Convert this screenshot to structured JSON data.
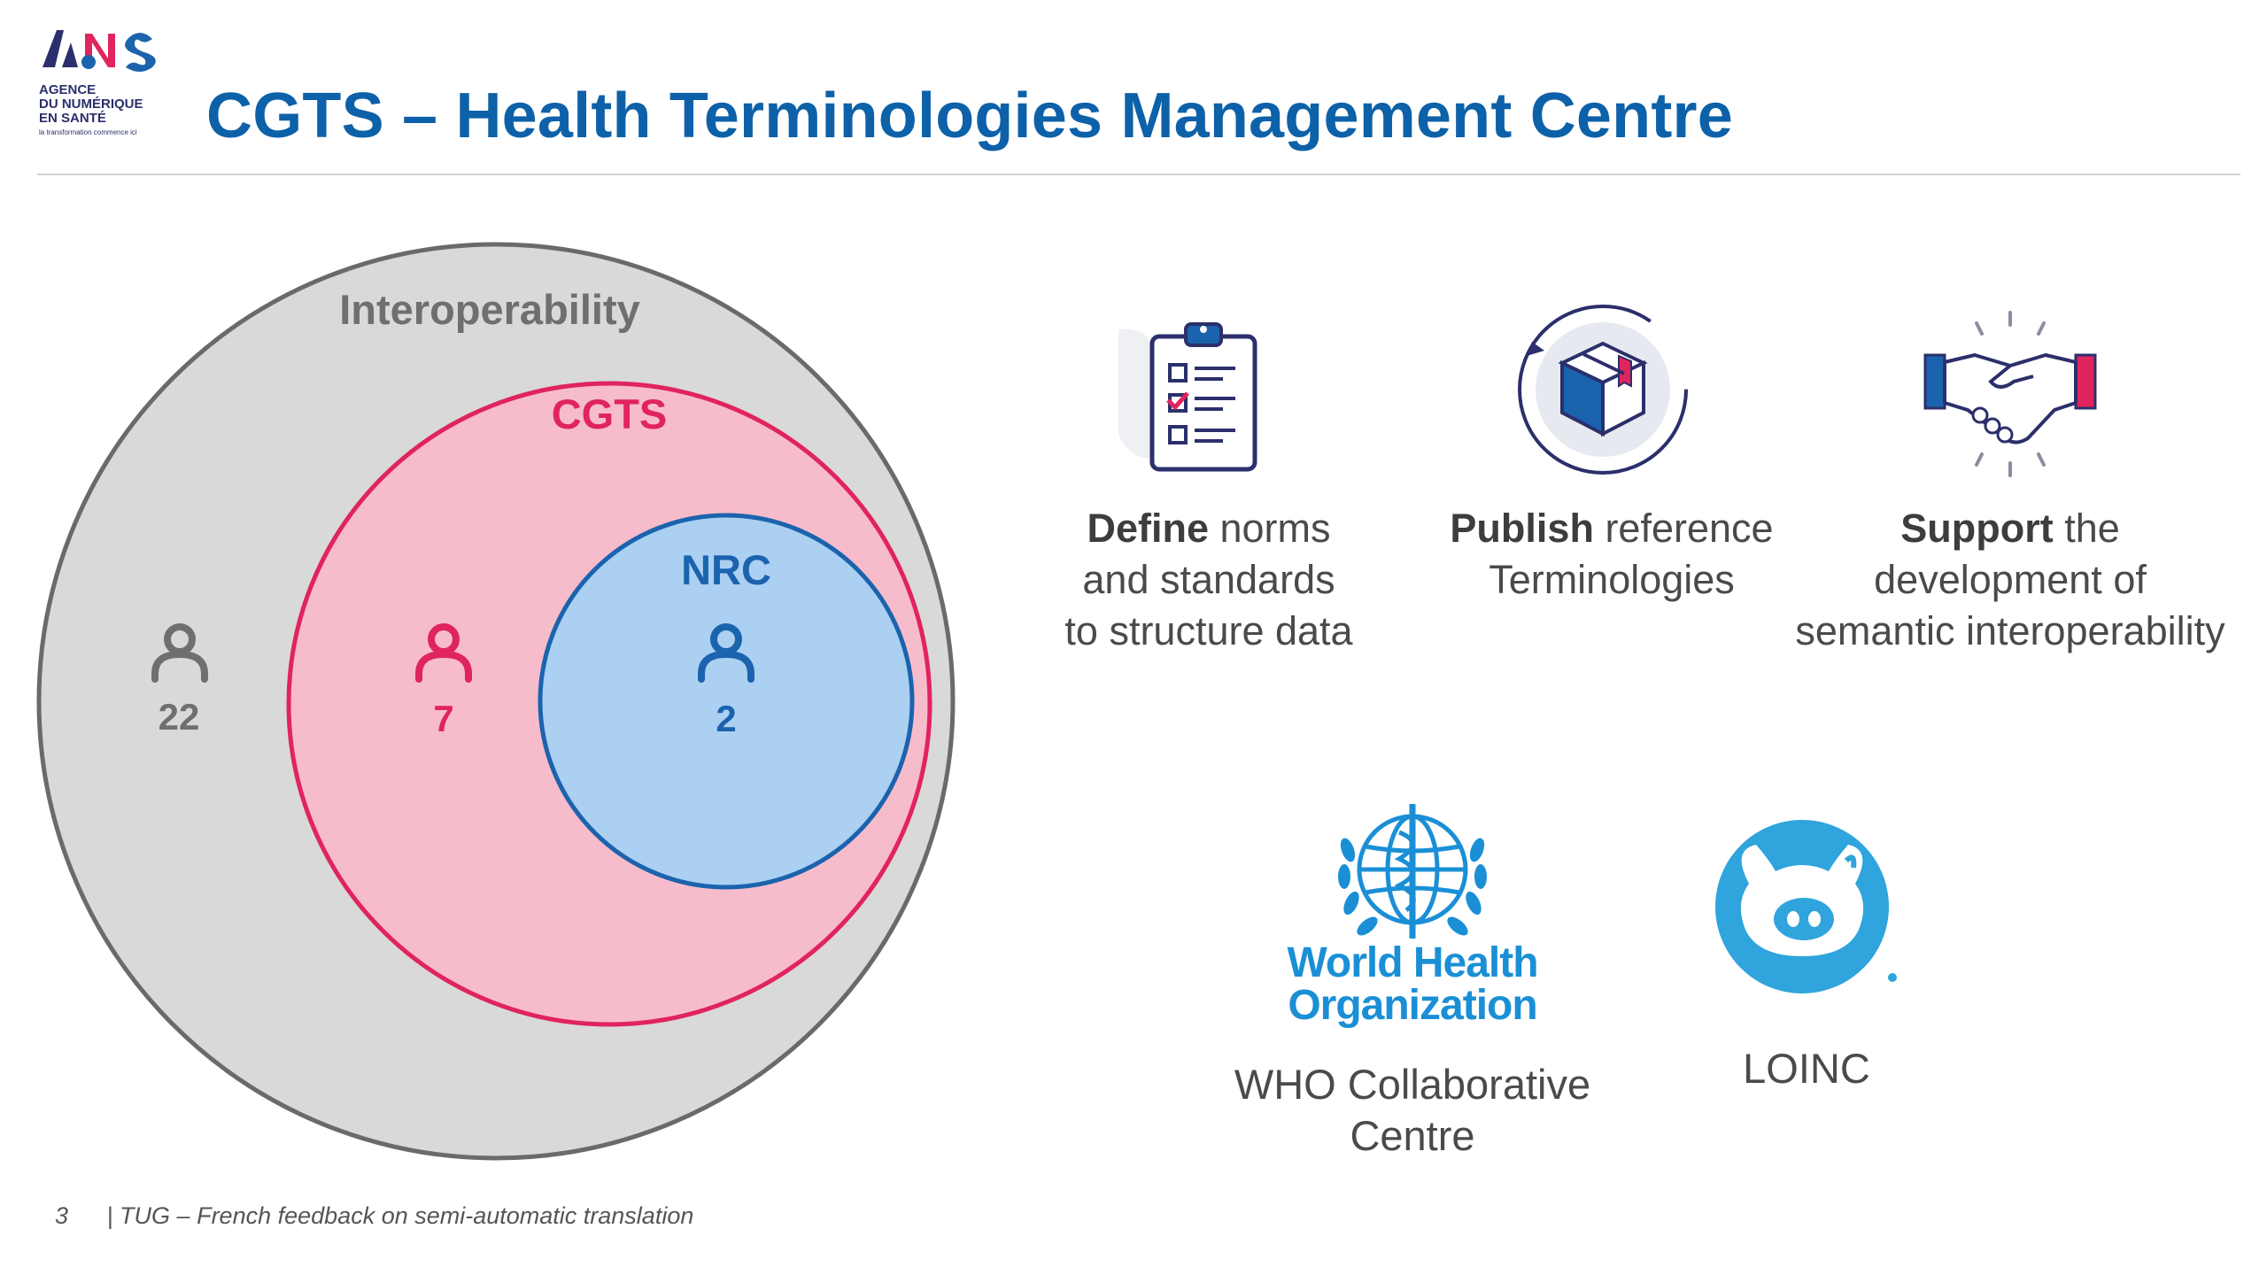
{
  "header": {
    "logo_lines": [
      "AGENCE",
      "DU NUMÉRIQUE",
      "EN SANTÉ",
      "la transformation commence ici"
    ],
    "title": "CGTS – Health Terminologies Management Centre"
  },
  "venn": {
    "outer": {
      "label": "Interoperability",
      "count": "22",
      "color": "#6f6f6f"
    },
    "middle": {
      "label": "CGTS",
      "count": "7",
      "color": "#e0245e"
    },
    "inner": {
      "label": "NRC",
      "count": "2",
      "color": "#1b63ad"
    }
  },
  "features": [
    {
      "icon": "checklist-clipboard-icon",
      "bold": "Define",
      "rest_first": " norms",
      "lines": [
        "and standards",
        "to structure data"
      ]
    },
    {
      "icon": "package-cycle-icon",
      "bold": "Publish",
      "rest_first": " reference",
      "lines": [
        "Terminologies"
      ]
    },
    {
      "icon": "handshake-icon",
      "bold": "Support",
      "rest_first": " the",
      "lines": [
        "development of",
        "semantic interoperability"
      ]
    }
  ],
  "partners": {
    "who": {
      "logo_line1": "World Health",
      "logo_line2": "Organization",
      "caption_line1": "WHO Collaborative",
      "caption_line2": "Centre",
      "color": "#1a8fd6"
    },
    "loinc": {
      "caption": "LOINC",
      "color": "#2fa4dd"
    }
  },
  "footer": {
    "page": "3",
    "text": "| TUG – French feedback on semi-automatic translation"
  }
}
